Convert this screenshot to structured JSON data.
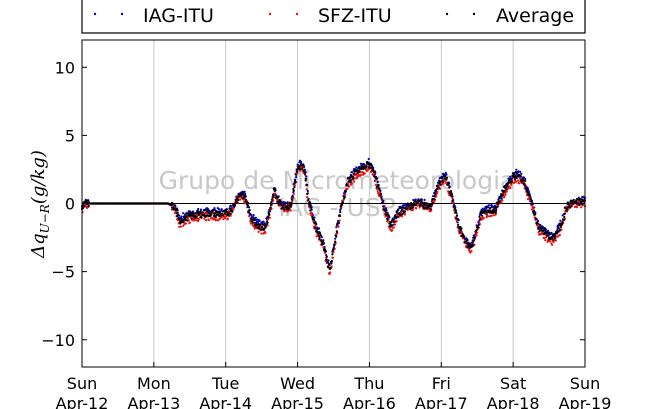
{
  "chart_data": {
    "type": "scatter",
    "ylabel": "Δq_{U−R}(g/kg)",
    "ylim": [
      -12,
      12
    ],
    "yticks": [
      -10,
      -5,
      0,
      5,
      10
    ],
    "ytick_labels": [
      "−10",
      "−5",
      "0",
      "5",
      "10"
    ],
    "xlim": [
      0,
      7
    ],
    "xticks": [
      {
        "value": 0,
        "day": "Sun",
        "date": "Apr-12"
      },
      {
        "value": 1,
        "day": "Mon",
        "date": "Apr-13"
      },
      {
        "value": 2,
        "day": "Tue",
        "date": "Apr-14"
      },
      {
        "value": 3,
        "day": "Wed",
        "date": "Apr-15"
      },
      {
        "value": 4,
        "day": "Thu",
        "date": "Apr-16"
      },
      {
        "value": 5,
        "day": "Fri",
        "date": "Apr-17"
      },
      {
        "value": 6,
        "day": "Sat",
        "date": "Apr-18"
      },
      {
        "value": 7,
        "day": "Sun",
        "date": "Apr-19"
      }
    ],
    "grid": "vertical",
    "zero_line": true,
    "legend_position": "top",
    "watermark": [
      "Grupo de Micrometeorologia",
      "IAG - USP"
    ],
    "series": [
      {
        "name": "IAG-ITU",
        "color": "#0000cc",
        "offset": 0.15
      },
      {
        "name": "SFZ-ITU",
        "color": "#ee1111",
        "offset": -0.25
      },
      {
        "name": "Average",
        "color": "#000000",
        "offset": 0
      }
    ],
    "x": [
      0.0,
      0.05,
      0.3,
      0.6,
      0.9,
      1.2,
      1.3,
      1.35,
      1.45,
      1.6,
      1.8,
      2.0,
      2.1,
      2.15,
      2.2,
      2.27,
      2.35,
      2.45,
      2.55,
      2.62,
      2.68,
      2.72,
      2.8,
      2.9,
      3.0,
      3.05,
      3.1,
      3.15,
      3.25,
      3.35,
      3.45,
      3.55,
      3.6,
      3.65,
      3.7,
      3.8,
      3.9,
      4.0,
      4.05,
      4.1,
      4.2,
      4.3,
      4.4,
      4.55,
      4.7,
      4.85,
      4.95,
      5.05,
      5.15,
      5.25,
      5.35,
      5.4,
      5.45,
      5.55,
      5.65,
      5.75,
      5.85,
      5.95,
      6.0,
      6.05,
      6.1,
      6.15,
      6.25,
      6.35,
      6.45,
      6.55,
      6.65,
      6.75,
      6.85,
      6.95,
      7.0
    ],
    "values": [
      -0.3,
      0,
      0,
      0,
      0,
      0,
      -0.3,
      -1.3,
      -1.0,
      -0.8,
      -0.7,
      -0.8,
      -0.3,
      0.3,
      0.7,
      0.5,
      -1.0,
      -1.6,
      -1.8,
      -0.5,
      1.0,
      0.3,
      -0.2,
      -0.2,
      2.6,
      2.9,
      2.4,
      0.3,
      -1.7,
      -2.8,
      -5.0,
      -1.8,
      -0.4,
      0.6,
      1.6,
      2.2,
      2.6,
      2.9,
      2.6,
      1.6,
      -0.2,
      -1.6,
      -0.7,
      -0.2,
      0.1,
      -0.3,
      1.2,
      2.1,
      0.4,
      -1.8,
      -2.8,
      -3.2,
      -2.8,
      -0.8,
      -0.5,
      -0.5,
      0.7,
      1.6,
      2.0,
      2.1,
      1.9,
      1.7,
      0.1,
      -1.7,
      -2.2,
      -2.6,
      -1.8,
      -0.2,
      0.1,
      0.1,
      0.2
    ]
  },
  "legend": {
    "items": [
      {
        "label": "IAG-ITU",
        "color": "#0000cc"
      },
      {
        "label": "SFZ-ITU",
        "color": "#ee1111"
      },
      {
        "label": "Average",
        "color": "#000000"
      }
    ]
  }
}
